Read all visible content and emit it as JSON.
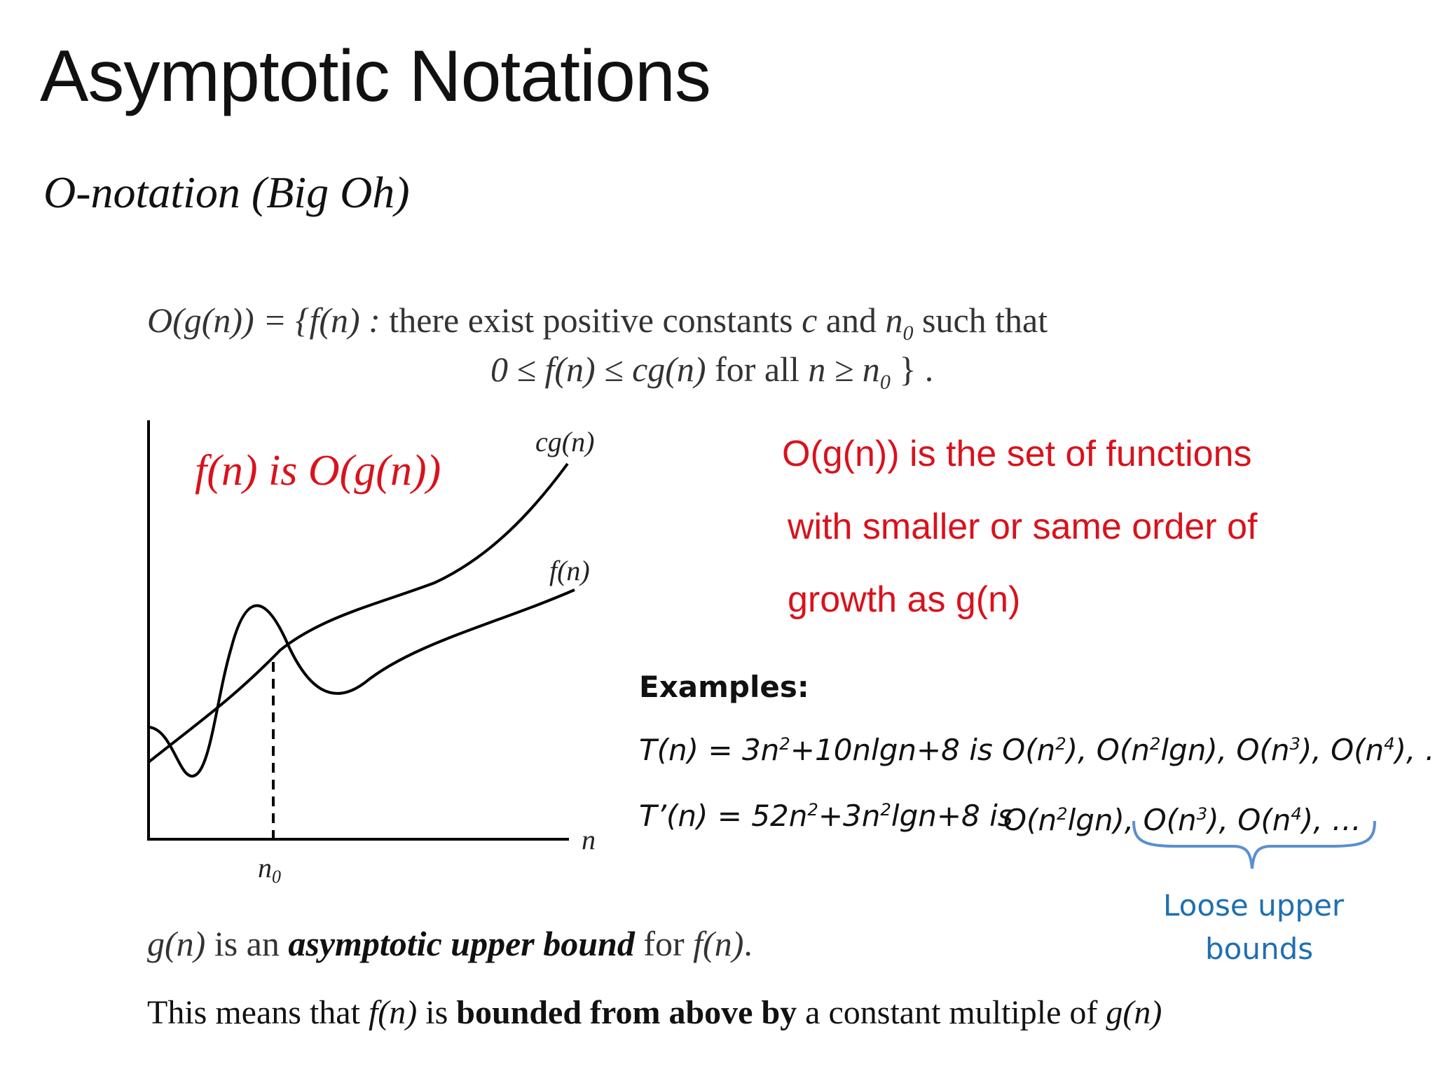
{
  "title": "Asymptotic Notations",
  "subtitle": "O-notation (Big Oh)",
  "definition": {
    "line1_a": "O(g(n)) = {f(n) :",
    "line1_b": "there exist positive constants",
    "line1_c": "c",
    "line1_d": "and",
    "line1_e": "n",
    "line1_e_sub": "0",
    "line1_f": "such that",
    "line2_a": "0 ≤ f(n) ≤ cg(n)",
    "line2_b": "for all",
    "line2_c": "n ≥ n",
    "line2_c_sub": "0",
    "line2_d": "} ."
  },
  "graph": {
    "label_cg": "cg(n)",
    "label_f": "f(n)",
    "label_x": "n",
    "label_n0": "n",
    "label_n0_sub": "0"
  },
  "claim_inside": "f(n) is O(g(n))",
  "claim": {
    "l1_a": "O(g(n))",
    "l1_b": " is the set of functions",
    "l2": "with smaller or same order of",
    "l3_a": "growth as ",
    "l3_b": "g(n)"
  },
  "examples": {
    "heading": "Examples:",
    "ex1": {
      "p1": "T(n) = 3n",
      "s1": "2",
      "p2": "+10nlgn+8 is O(n",
      "s2": "2",
      "p3": "), O(n",
      "s3": "2",
      "p4": "lgn), O(n",
      "s4": "3",
      "p5": "), O(n",
      "s5": "4",
      "p6": "), …"
    },
    "ex2": {
      "p1": "T’(n) = 52n",
      "s1": "2",
      "p2": "+3n",
      "s2": "2",
      "p3": "lgn+8 is"
    },
    "ex2_bounds": {
      "p1": "O(n",
      "s1": "2",
      "p2": "lgn), O(n",
      "s2": "3",
      "p3": "), O(n",
      "s3": "4",
      "p4": "), …"
    }
  },
  "annotation": {
    "line1": "Loose upper",
    "line2": "bounds",
    "color": "#1f6fb2"
  },
  "bound_statement": {
    "a": "g(n)",
    "b": " is an ",
    "c": "asymptotic upper bound",
    "d": " for ",
    "e": "f(n)",
    "f": "."
  },
  "meaning": {
    "a": "This means that ",
    "b": "f(n)",
    "c": " is ",
    "d": "bounded from above by",
    "e": " a constant multiple of ",
    "f": "g(n)"
  },
  "colors": {
    "accent_red": "#d9121c",
    "text": "#111111",
    "brace": "#5b8fd0"
  }
}
